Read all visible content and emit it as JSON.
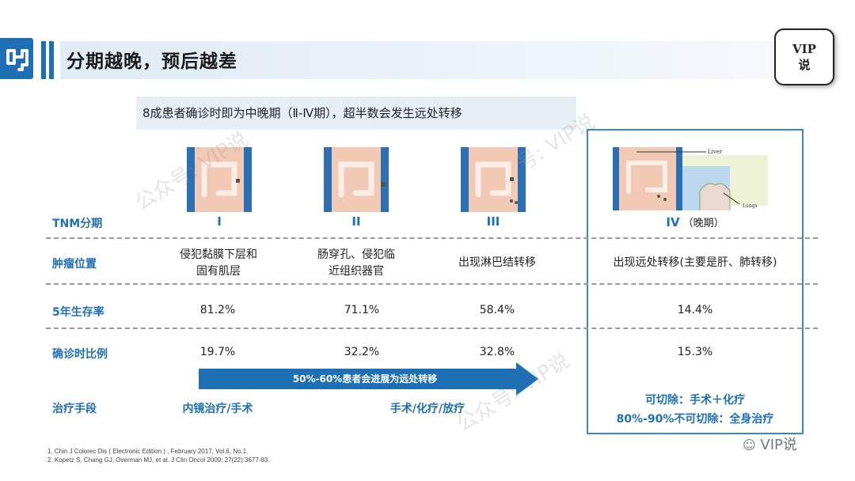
{
  "header": {
    "title": "分期越晚，预后越差",
    "badge_line1": "VIP",
    "badge_line2": "说"
  },
  "subtitle": "8成患者确诊时即为中晚期（Ⅱ-Ⅳ期），超半数会发生远处转移",
  "thumbnails": {
    "stage4_label_liver": "Liver",
    "stage4_label_lungs": "Lungs"
  },
  "table": {
    "row_labels": [
      "TNM分期",
      "肿瘤位置",
      "5年生存率",
      "确诊时比例",
      "治疗手段"
    ],
    "stages": [
      "I",
      "II",
      "III",
      "IV"
    ],
    "stage4_suffix": "（晚期）",
    "location": [
      [
        "侵犯黏膜下层和",
        "固有肌层"
      ],
      [
        "肠穿孔、侵犯临",
        "近组织器官"
      ],
      [
        "出现淋巴结转移"
      ],
      [
        "出现远处转移(主要是肝、肺转移)"
      ]
    ],
    "survival": [
      "81.2%",
      "71.1%",
      "58.4%",
      "14.4%"
    ],
    "proportion": [
      "19.7%",
      "32.2%",
      "32.8%",
      "15.3%"
    ],
    "arrow_text": "50%-60%患者会进展为远处转移",
    "treatment": {
      "stage1": "内镜治疗/手术",
      "stage23": "手术/化疗/放疗",
      "stage4_line1": "可切除：手术＋化疗",
      "stage4_line2": "80%-90%不可切除：全身治疗"
    }
  },
  "references": [
    "1. Chin J Colorec Dis ( Electronic Edition ) , February 2017, Vol.6, No.1.",
    "2. Kopetz S, Chang GJ, Overman MJ, et al.  J Clin Oncol 2009; 27(22):3677-83."
  ],
  "watermark": {
    "text1": "公众号: VIP说",
    "text2": "号: VIP说",
    "text3": "公众号: VIP说"
  },
  "footer": {
    "wechat": "VIP说"
  },
  "colors": {
    "brand_blue": "#1f6fb5",
    "frame_blue": "#3a86c8"
  }
}
